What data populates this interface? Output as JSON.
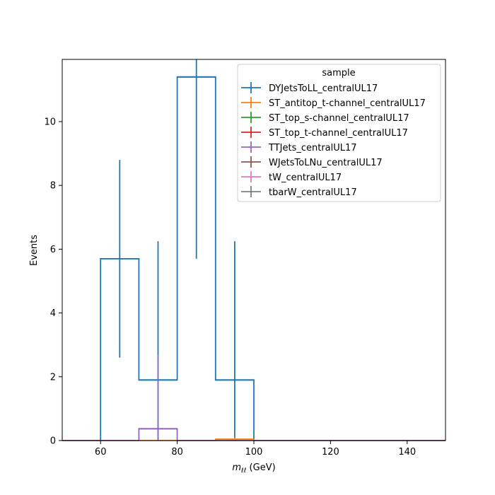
{
  "chart_data": {
    "type": "histogram",
    "xlabel_var": "m",
    "xlabel_sub": "ℓℓ",
    "xlabel_unit": " (GeV)",
    "ylabel": "Events",
    "xlim": [
      50,
      150
    ],
    "ylim": [
      0,
      11.95
    ],
    "xticks": [
      60,
      80,
      100,
      120,
      140
    ],
    "yticks": [
      0,
      2,
      4,
      6,
      8,
      10
    ],
    "legend_title": "sample",
    "legend_position": "top-right",
    "bin_edges": [
      50,
      55,
      60,
      65,
      70,
      75,
      80,
      85,
      90,
      95,
      100,
      105,
      110,
      115,
      120,
      125,
      130,
      135,
      140,
      145,
      150
    ],
    "series": [
      {
        "name": "DYJetsToLL_centralUL17",
        "color": "#1f77b4",
        "values": [
          0,
          0,
          5.7,
          5.7,
          1.9,
          1.9,
          11.4,
          11.4,
          1.9,
          1.9,
          0,
          0,
          0,
          0,
          0,
          0,
          0,
          0,
          0,
          0
        ],
        "errorbars": [
          {
            "x": 65,
            "y": 5.7,
            "yerr": 3.1,
            "xerr": 5
          },
          {
            "x": 75,
            "y": 1.9,
            "yerr": 4.35,
            "xerr": 5
          },
          {
            "x": 85,
            "y": 11.4,
            "yerr": 5.7,
            "xerr": 5
          },
          {
            "x": 95,
            "y": 1.9,
            "yerr": 4.35,
            "xerr": 5
          }
        ]
      },
      {
        "name": "ST_antitop_t-channel_centralUL17",
        "color": "#ff7f0e",
        "values": [
          0,
          0,
          0,
          0,
          0,
          0,
          0,
          0,
          0.04,
          0.04,
          0,
          0,
          0,
          0,
          0,
          0,
          0,
          0,
          0,
          0
        ],
        "errorbars": [
          {
            "x": 95,
            "y": 0.04,
            "yerr": 0.06,
            "xerr": 5
          }
        ]
      },
      {
        "name": "ST_top_s-channel_centralUL17",
        "color": "#2ca02c",
        "values": [],
        "errorbars": []
      },
      {
        "name": "ST_top_t-channel_centralUL17",
        "color": "#d62728",
        "values": [],
        "errorbars": []
      },
      {
        "name": "TTJets_centralUL17",
        "color": "#9467bd",
        "values": [
          0,
          0,
          0,
          0,
          0.37,
          0.37,
          0,
          0,
          0,
          0,
          0,
          0,
          0,
          0,
          0,
          0,
          0,
          0,
          0,
          0
        ],
        "errorbars": [
          {
            "x": 75,
            "y": 0.37,
            "yerr": 2.33,
            "xerr": 5
          }
        ]
      },
      {
        "name": "WJetsToLNu_centralUL17",
        "color": "#8c564b",
        "values": [],
        "errorbars": []
      },
      {
        "name": "tW_centralUL17",
        "color": "#e377c2",
        "values": [],
        "errorbars": []
      },
      {
        "name": "tbarW_centralUL17",
        "color": "#7f7f7f",
        "values": [],
        "errorbars": []
      }
    ]
  }
}
